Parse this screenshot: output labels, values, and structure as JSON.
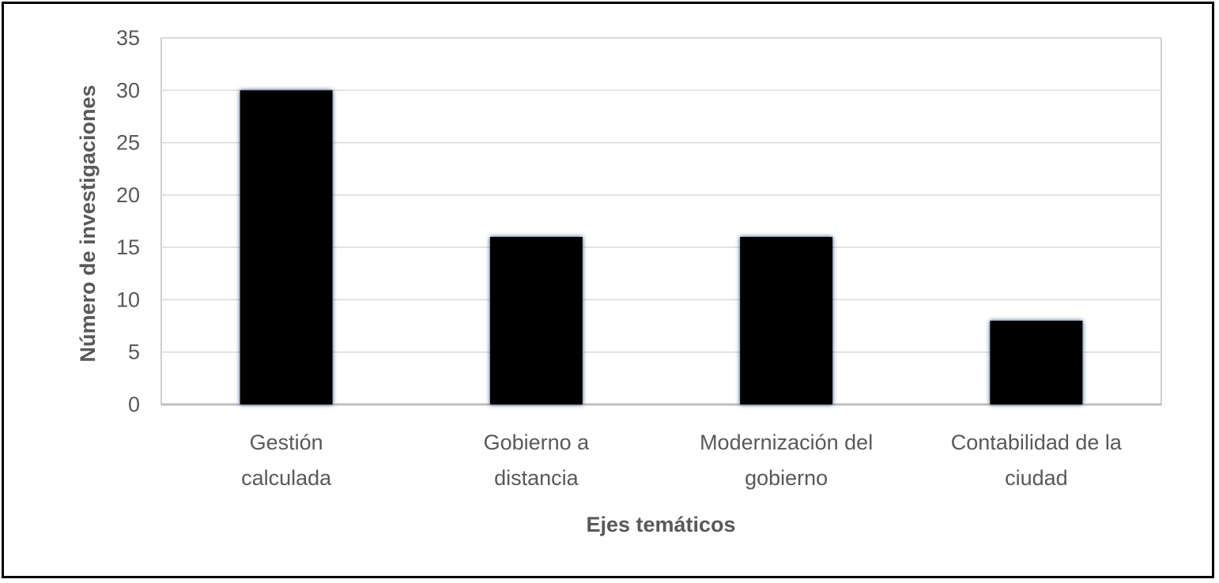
{
  "chart_data": {
    "type": "bar",
    "categories": [
      [
        "Gestión",
        "calculada"
      ],
      [
        "Gobierno a",
        "distancia"
      ],
      [
        "Modernización del",
        "gobierno"
      ],
      [
        "Contabilidad de la",
        "ciudad"
      ]
    ],
    "values": [
      30,
      16,
      16,
      8
    ],
    "xlabel": "Ejes temáticos",
    "ylabel": "Número de investigaciones",
    "ylim": [
      0,
      35
    ],
    "yticks": [
      0,
      5,
      10,
      15,
      20,
      25,
      30,
      35
    ],
    "grid": true,
    "legend": "none",
    "colors": {
      "bar": "#000000",
      "bar_glow": "#1f3a5f",
      "grid": "#d9d9d9",
      "axis": "#bfbfbf",
      "text": "#595959"
    }
  }
}
